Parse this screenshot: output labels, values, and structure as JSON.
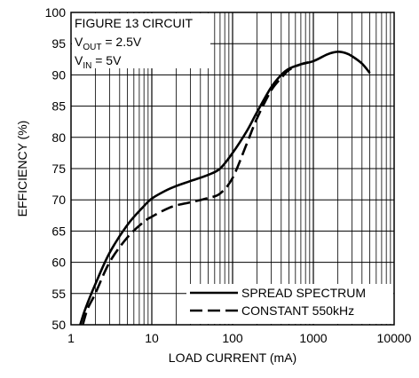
{
  "chart_data": {
    "type": "line",
    "title": "",
    "xlabel": "LOAD CURRENT (mA)",
    "ylabel": "EFFICIENCY (%)",
    "x_scale": "log",
    "xlim": [
      1,
      10000
    ],
    "ylim": [
      50,
      100
    ],
    "x_ticks": [
      "1",
      "10",
      "100",
      "1000",
      "10000"
    ],
    "y_ticks": [
      "50",
      "55",
      "60",
      "65",
      "70",
      "75",
      "80",
      "85",
      "90",
      "95",
      "100"
    ],
    "grid": true,
    "legend_position": "bottom-right",
    "annotation": {
      "line1": "FIGURE 13 CIRCUIT",
      "line2_main": "V",
      "line2_sub": "OUT",
      "line2_rest": " = 2.5V",
      "line3_main": "V",
      "line3_sub": "IN",
      "line3_rest": " = 5V"
    },
    "series": [
      {
        "name": "SPREAD SPECTRUM",
        "style": "solid",
        "x": [
          1.3,
          1.5,
          2,
          3,
          5,
          8,
          10,
          15,
          20,
          30,
          50,
          70,
          100,
          150,
          200,
          300,
          400,
          500,
          700,
          1000,
          1500,
          2000,
          2500,
          3000,
          4000,
          5000
        ],
        "y": [
          50,
          52.5,
          56.5,
          61.5,
          66,
          69,
          70.2,
          71.5,
          72.2,
          73,
          74,
          75,
          77.5,
          81,
          84,
          88,
          90,
          91,
          91.7,
          92.2,
          93.3,
          93.7,
          93.5,
          93,
          91.8,
          90.3
        ]
      },
      {
        "name": "CONSTANT 550kHz",
        "style": "dashed",
        "x": [
          1.4,
          1.6,
          2,
          3,
          5,
          8,
          10,
          15,
          20,
          30,
          50,
          70,
          100,
          150,
          200,
          300,
          400,
          500,
          700,
          1000
        ],
        "y": [
          50,
          52.5,
          55,
          60,
          64,
          66.5,
          67.3,
          68.5,
          69.1,
          69.6,
          70.3,
          71,
          73.5,
          79,
          83,
          87.5,
          89.5,
          90.8,
          91.7,
          92.2
        ]
      }
    ]
  }
}
